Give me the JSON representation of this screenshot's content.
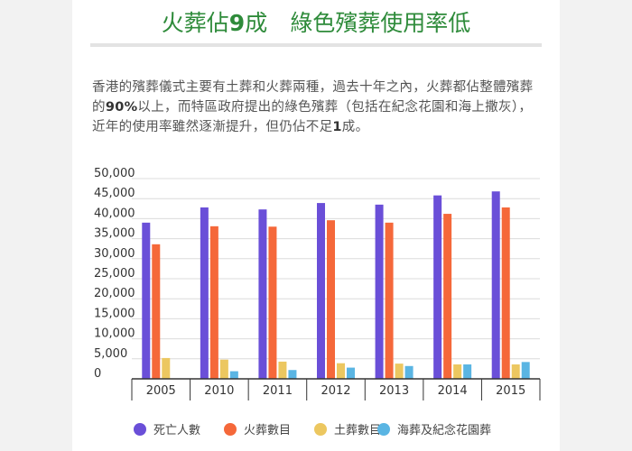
{
  "page": {
    "title_part1": "火葬佔",
    "title_bold": "9",
    "title_part2": "成",
    "title_part3": "綠色殯葬使用率低",
    "intro_a": "香港的殯葬儀式主要有土葬和火葬兩種，過去十年之內，火葬都佔整體殯葬的",
    "intro_bold1": "90%",
    "intro_b": "以上，而特區政府提出的綠色殯葬（包括在紀念花園和海上撒灰），近年的使用率雖然逐漸提升，但仍佔不足",
    "intro_bold2": "1",
    "intro_c": "成。"
  },
  "chart_data": {
    "type": "bar",
    "categories": [
      "2005",
      "2010",
      "2011",
      "2012",
      "2013",
      "2014",
      "2015"
    ],
    "ylim": [
      0,
      50000
    ],
    "y_ticks": [
      "0",
      "5,000",
      "10,000",
      "15,000",
      "20,000",
      "25,000",
      "30,000",
      "35,000",
      "40,000",
      "45,000",
      "50,000"
    ],
    "grid": true,
    "legend_position": "bottom",
    "series": [
      {
        "name": "死亡人數",
        "color": "#6a4fd8",
        "values": [
          39000,
          42800,
          42300,
          43900,
          43500,
          45800,
          46800
        ]
      },
      {
        "name": "火葬數目",
        "color": "#f5683a",
        "values": [
          33600,
          38100,
          38000,
          39600,
          39000,
          41200,
          42800
        ]
      },
      {
        "name": "土葬數目",
        "color": "#ecc760",
        "values": [
          5200,
          4800,
          4300,
          3900,
          3800,
          3600,
          3600
        ]
      },
      {
        "name": "海葬及紀念花園葬",
        "color": "#5ab5e3",
        "values": [
          0,
          1900,
          2200,
          2800,
          3200,
          3600,
          4200
        ]
      }
    ]
  }
}
